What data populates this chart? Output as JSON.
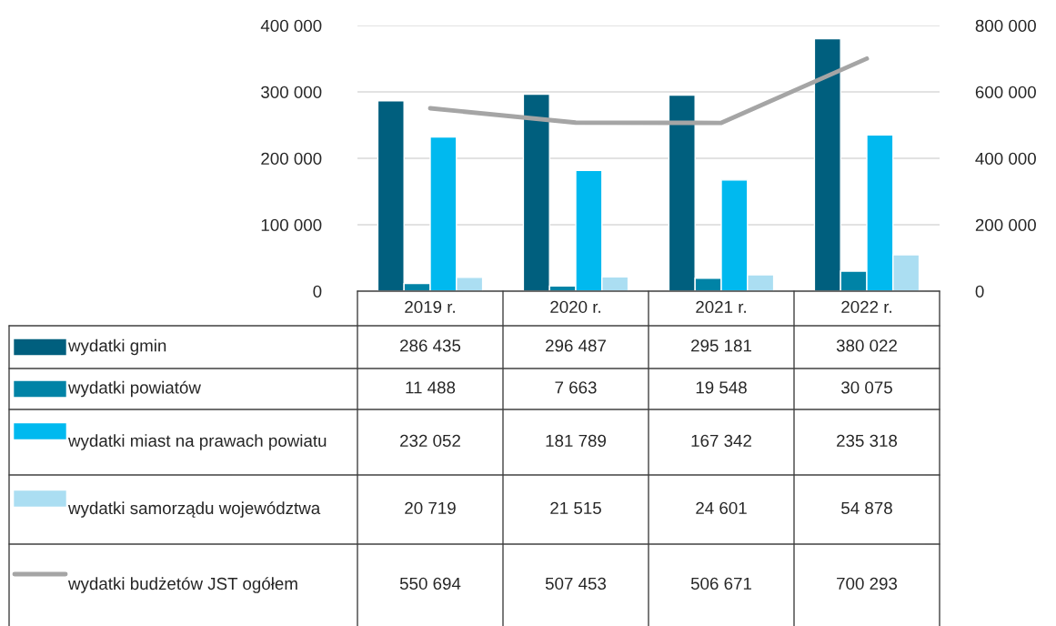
{
  "chart_data": {
    "type": "bar",
    "categories": [
      "2019 r.",
      "2020 r.",
      "2021 r.",
      "2022 r."
    ],
    "series": [
      {
        "name": "wydatki gmin",
        "color": "#005f7e",
        "values": [
          286435,
          296487,
          295181,
          380022
        ],
        "value_labels": [
          "286 435",
          "296 487",
          "295 181",
          "380 022"
        ]
      },
      {
        "name": "wydatki powiatów",
        "color": "#0083a6",
        "values": [
          11488,
          7663,
          19548,
          30075
        ],
        "value_labels": [
          "11 488",
          "7 663",
          "19 548",
          "30 075"
        ]
      },
      {
        "name": "wydatki miast na prawach powiatu",
        "color": "#00b9ef",
        "values": [
          232052,
          181789,
          167342,
          235318
        ],
        "value_labels": [
          "232 052",
          "181 789",
          "167 342",
          "235 318"
        ]
      },
      {
        "name": "wydatki samorządu województwa",
        "color": "#abdef2",
        "values": [
          20719,
          21515,
          24601,
          54878
        ],
        "value_labels": [
          "20 719",
          "21 515",
          "24 601",
          "54 878"
        ]
      },
      {
        "name": "wydatki budżetów JST ogółem",
        "type": "line",
        "axis": "y2",
        "color": "#a5a5a5",
        "line_style": "solid",
        "marker": "none",
        "values": [
          550694,
          507453,
          506671,
          700293
        ],
        "value_labels": [
          "550 694",
          "507 453",
          "506 671",
          "700 293"
        ]
      }
    ],
    "ylim": [
      0,
      400000
    ],
    "yticks": [
      {
        "value": 0,
        "label": "0"
      },
      {
        "value": 100000,
        "label": "100 000"
      },
      {
        "value": 200000,
        "label": "200 000"
      },
      {
        "value": 300000,
        "label": "300 000"
      },
      {
        "value": 400000,
        "label": "400 000"
      }
    ],
    "y2lim": [
      0,
      800000
    ],
    "y2ticks": [
      {
        "value": 0,
        "label": "0"
      },
      {
        "value": 200000,
        "label": "200 000"
      },
      {
        "value": 400000,
        "label": "400 000"
      },
      {
        "value": 600000,
        "label": "600 000"
      },
      {
        "value": 800000,
        "label": "800 000"
      }
    ],
    "grid": "y",
    "legend": "bottom"
  }
}
